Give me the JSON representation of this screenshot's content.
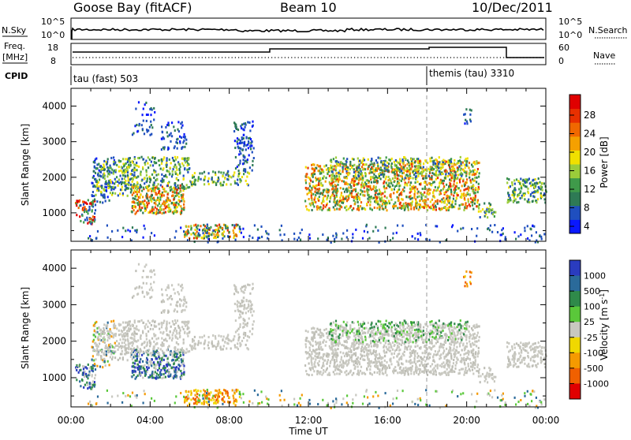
{
  "header": {
    "station": "Goose Bay (fitACF)",
    "beam": "Beam 10",
    "date": "10/Dec/2011"
  },
  "strip": {
    "nsky_label": "N.Sky",
    "nsky_ticks": [
      "10^5",
      "10^0"
    ],
    "nsearch_label": "N.Search",
    "nsearch_ticks": [
      "10^5",
      "10^0"
    ],
    "freq_label_1": "Freq.",
    "freq_label_2": "[MHz]",
    "freq_ticks": [
      "18",
      "8"
    ],
    "nave_label": "Nave",
    "nave_ticks": [
      "60",
      "0"
    ],
    "cpid_label": "CPID",
    "cpid_segments": [
      {
        "name": "tau (fast) 503",
        "start": "00:00"
      },
      {
        "name": "themis (tau) 3310",
        "start": "18:00"
      }
    ]
  },
  "chart_data": [
    {
      "type": "heatmap",
      "panel": "power",
      "ylabel": "Slant Range [km]",
      "yticks": [
        "4000",
        "3000",
        "2000",
        "1000"
      ],
      "ylim": [
        200,
        4500
      ],
      "xlim": [
        "00:00",
        "24:00"
      ],
      "colorbar_label": "Power [dB]",
      "colorbar_ticks": [
        "28",
        "24",
        "20",
        "16",
        "12",
        "8",
        "4"
      ],
      "colors": [
        "#0a18ff",
        "#1f4fbf",
        "#2e7a55",
        "#3f9a4a",
        "#9bcc3a",
        "#f0e000",
        "#f5a000",
        "#f06800",
        "#e83000",
        "#e00000"
      ]
    },
    {
      "type": "heatmap",
      "panel": "velocity",
      "ylabel": "Slant Range [km]",
      "yticks": [
        "4000",
        "3000",
        "2000",
        "1000"
      ],
      "ylim": [
        200,
        4500
      ],
      "xlim": [
        "00:00",
        "24:00"
      ],
      "colorbar_label": "Velocity [m s-1]",
      "colorbar_ticks": [
        "1000",
        "500",
        "100",
        "25",
        "-25",
        "-100",
        "-500",
        "-1000"
      ],
      "colors": [
        "#2a3cbf",
        "#2a6a9a",
        "#2f8a4a",
        "#5ac83a",
        "#c8c8c0",
        "#f0d800",
        "#f59a00",
        "#f06000",
        "#e00000"
      ]
    }
  ],
  "xaxis": {
    "ticks": [
      "00:00",
      "04:00",
      "08:00",
      "12:00",
      "16:00",
      "20:00",
      "00:00"
    ],
    "label": "Time UT"
  }
}
